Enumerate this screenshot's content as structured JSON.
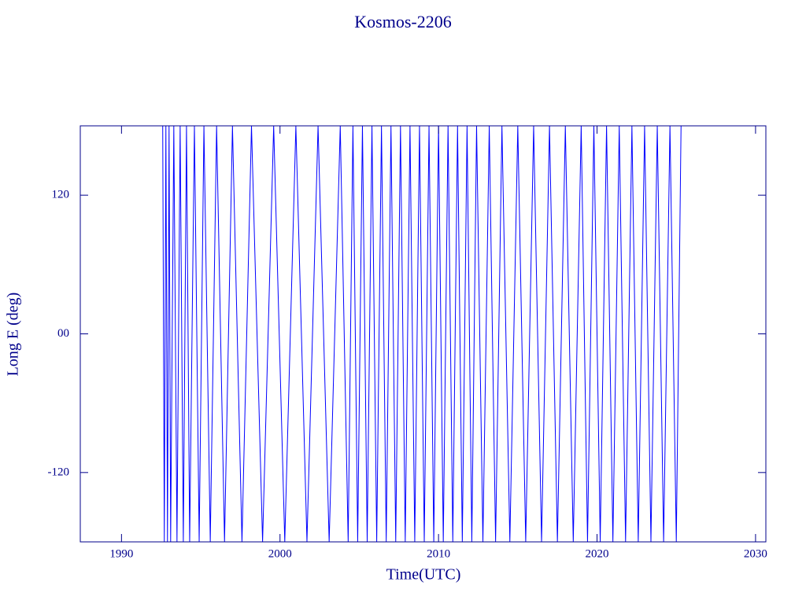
{
  "chart_data": {
    "type": "line",
    "title": "Kosmos-2206",
    "x_label": "Time(UTC)",
    "y_label": "Long E (deg)",
    "color": "#0000ff",
    "xlim": [
      1987.4,
      2030.65
    ],
    "ylim": [
      -180,
      180
    ],
    "xticks": [
      1990,
      2000,
      2010,
      2020,
      2030
    ],
    "yticks": [
      -120,
      {
        "value": 0,
        "label": "00"
      },
      120
    ],
    "x": [
      1992.6,
      1992.7,
      1992.8,
      1992.9,
      1993.0,
      1993.1,
      1993.3,
      1993.5,
      1993.7,
      1993.9,
      1994.1,
      1994.3,
      1994.6,
      1994.9,
      1995.2,
      1995.6,
      1996.0,
      1996.5,
      1997.0,
      1997.6,
      1998.2,
      1998.9,
      1999.6,
      2000.3,
      2001.0,
      2001.7,
      2002.4,
      2003.1,
      2003.8,
      2004.3,
      2004.6,
      2004.9,
      2005.2,
      2005.5,
      2005.8,
      2006.1,
      2006.4,
      2006.7,
      2007.0,
      2007.3,
      2007.6,
      2007.9,
      2008.2,
      2008.5,
      2008.8,
      2009.1,
      2009.4,
      2009.7,
      2010.0,
      2010.3,
      2010.6,
      2010.9,
      2011.2,
      2011.5,
      2011.8,
      2012.1,
      2012.4,
      2012.8,
      2013.2,
      2013.6,
      2014.0,
      2014.5,
      2015.0,
      2015.5,
      2016.0,
      2016.5,
      2017.0,
      2017.5,
      2018.0,
      2018.5,
      2019.0,
      2019.4,
      2019.8,
      2020.2,
      2020.6,
      2021.0,
      2021.4,
      2021.8,
      2022.2,
      2022.6,
      2023.0,
      2023.4,
      2023.8,
      2024.2,
      2024.6,
      2025.0,
      2025.3
    ],
    "values": [
      180,
      -180,
      180,
      -180,
      180,
      -180,
      180,
      -180,
      180,
      -180,
      180,
      -180,
      180,
      -180,
      180,
      -180,
      180,
      -180,
      180,
      -180,
      180,
      -180,
      180,
      -180,
      180,
      -180,
      180,
      -180,
      180,
      -180,
      180,
      -180,
      180,
      -180,
      180,
      -180,
      180,
      -180,
      180,
      -180,
      180,
      -180,
      180,
      -180,
      180,
      -180,
      180,
      -180,
      180,
      -180,
      180,
      -180,
      180,
      -180,
      180,
      -180,
      180,
      -180,
      180,
      -180,
      180,
      -180,
      180,
      -180,
      180,
      -180,
      180,
      -180,
      180,
      -180,
      180,
      -180,
      180,
      -180,
      180,
      -180,
      180,
      -180,
      180,
      -180,
      180,
      -180,
      180,
      -180,
      180,
      -180,
      180
    ]
  }
}
